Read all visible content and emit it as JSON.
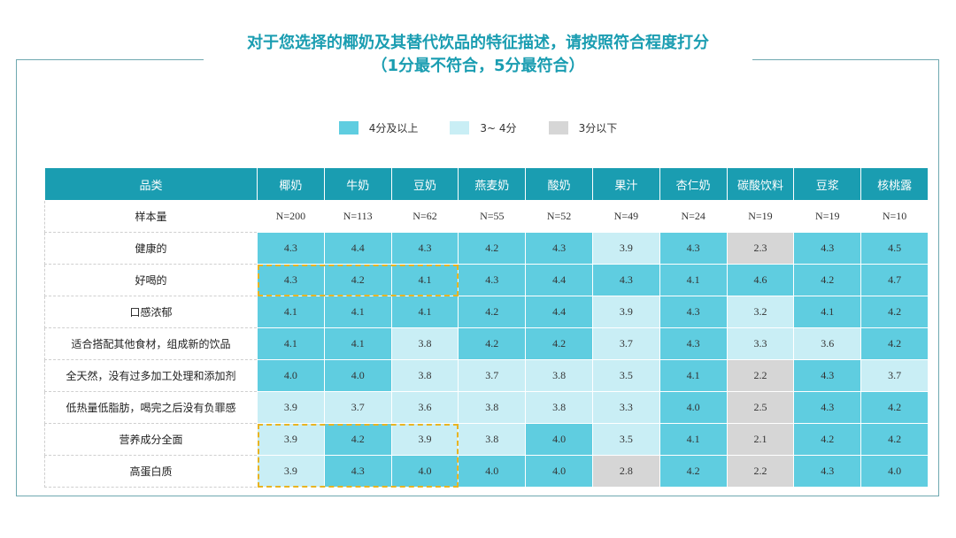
{
  "title": {
    "line1": "对于您选择的椰奶及其替代饮品的特征描述，请按照符合程度打分",
    "line2": "（1分最不符合，5分最符合）"
  },
  "legend": [
    {
      "label": "4分及以上",
      "color": "#5fcde0"
    },
    {
      "label": "3~ 4分",
      "color": "#c9eef5"
    },
    {
      "label": "3分以下",
      "color": "#d6d6d6"
    }
  ],
  "chart_data": {
    "type": "table",
    "header_label": "品类",
    "columns": [
      "椰奶",
      "牛奶",
      "豆奶",
      "燕麦奶",
      "酸奶",
      "果汁",
      "杏仁奶",
      "碳酸饮料",
      "豆浆",
      "核桃露"
    ],
    "sample_row_label": "样本量",
    "sample_sizes": [
      "N=200",
      "N=113",
      "N=62",
      "N=55",
      "N=52",
      "N=49",
      "N=24",
      "N=19",
      "N=19",
      "N=10"
    ],
    "rows": [
      {
        "label": "健康的",
        "values": [
          4.3,
          4.4,
          4.3,
          4.2,
          4.3,
          3.9,
          4.3,
          2.3,
          4.3,
          4.5
        ]
      },
      {
        "label": "好喝的",
        "values": [
          4.3,
          4.2,
          4.1,
          4.3,
          4.4,
          4.3,
          4.1,
          4.6,
          4.2,
          4.7
        ]
      },
      {
        "label": "口感浓郁",
        "values": [
          4.1,
          4.1,
          4.1,
          4.2,
          4.4,
          3.9,
          4.3,
          3.2,
          4.1,
          4.2
        ]
      },
      {
        "label": "适合搭配其他食材，组成新的饮品",
        "values": [
          4.1,
          4.1,
          3.8,
          4.2,
          4.2,
          3.7,
          4.3,
          3.3,
          3.6,
          4.2
        ]
      },
      {
        "label": "全天然，没有过多加工处理和添加剂",
        "values": [
          4.0,
          4.0,
          3.8,
          3.7,
          3.8,
          3.5,
          4.1,
          2.2,
          4.3,
          3.7
        ]
      },
      {
        "label": "低热量低脂肪，喝完之后没有负罪感",
        "values": [
          3.9,
          3.7,
          3.6,
          3.8,
          3.8,
          3.3,
          4.0,
          2.5,
          4.3,
          4.2
        ]
      },
      {
        "label": "营养成分全面",
        "values": [
          3.9,
          4.2,
          3.9,
          3.8,
          4.0,
          3.5,
          4.1,
          2.1,
          4.2,
          4.2
        ]
      },
      {
        "label": "高蛋白质",
        "values": [
          3.9,
          4.3,
          4.0,
          4.0,
          4.0,
          2.8,
          4.2,
          2.2,
          4.3,
          4.0
        ]
      }
    ],
    "thresholds": {
      "high": 4.0,
      "mid": 3.0
    },
    "highlight_cells": [
      {
        "rows": [
          1,
          1
        ],
        "cols": [
          0,
          2
        ]
      },
      {
        "rows": [
          6,
          7
        ],
        "cols": [
          0,
          2
        ]
      }
    ]
  }
}
